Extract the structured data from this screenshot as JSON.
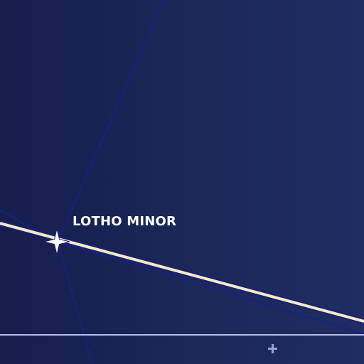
{
  "map": {
    "location": {
      "name": "LOTHO MINOR",
      "marker_icon": "four-point-star-icon"
    },
    "crosshair_icon": "plus-crosshair-icon",
    "colors": {
      "background": "#1b2556",
      "hyperlane": "#f3ecc0",
      "hyperlane_outline": "#17216a",
      "grid_line": "#1a1f8a",
      "boundary_line": "#b8bde6",
      "label": "#ffffff"
    }
  }
}
